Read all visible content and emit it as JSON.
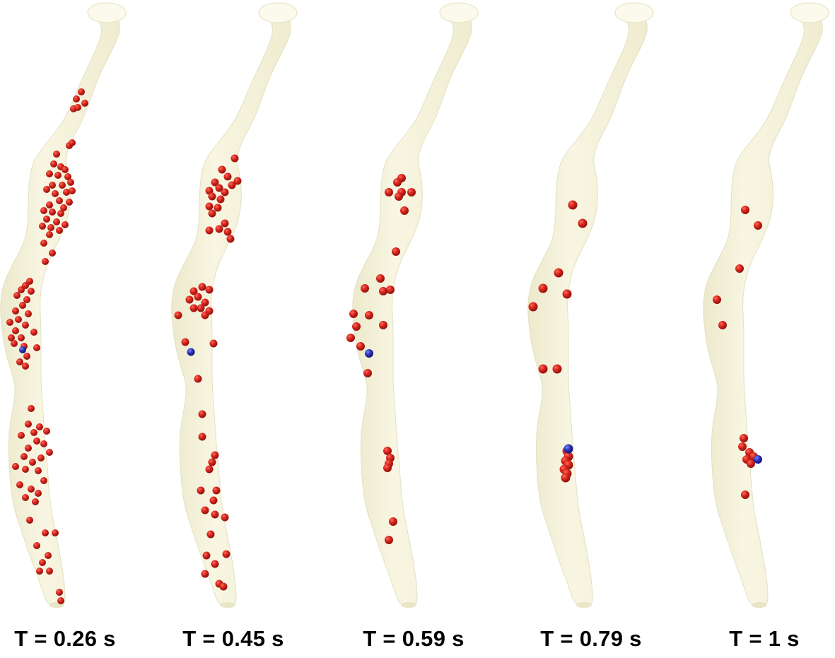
{
  "colors": {
    "background": "#ffffff",
    "vessel_fill": "#f6f4dc",
    "vessel_shade": "#e3e0c0",
    "vessel_cap": "#fbfaec",
    "particle_red": "#c8201b",
    "particle_red_highlight": "#ff6a5e",
    "particle_blue": "#2a31b8",
    "particle_blue_highlight": "#7c86ff"
  },
  "panels": [
    {
      "label": "T = 0.26 s"
    },
    {
      "label": "T = 0.45 s"
    },
    {
      "label": "T = 0.59 s"
    },
    {
      "label": "T = 0.79 s"
    },
    {
      "label": "T = 1 s"
    }
  ]
}
